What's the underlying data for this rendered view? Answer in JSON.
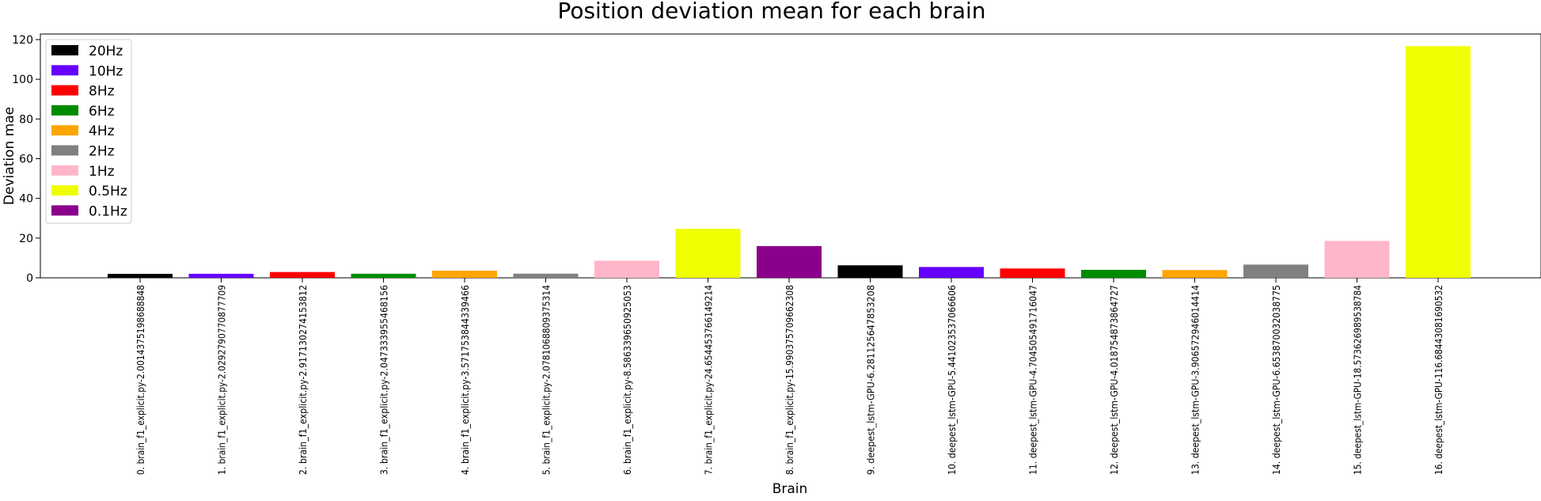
{
  "chart_data": {
    "type": "bar",
    "title": "Position deviation mean for each brain",
    "xlabel": "Brain",
    "ylabel": "Deviation mae",
    "ylim": [
      0,
      122
    ],
    "yticks": [
      0,
      20,
      40,
      60,
      80,
      100,
      120
    ],
    "grid": false,
    "legend_position": "top-left",
    "legend": [
      {
        "label": "20Hz",
        "color": "#000000"
      },
      {
        "label": "10Hz",
        "color": "#6600ff"
      },
      {
        "label": "8Hz",
        "color": "#ff0000"
      },
      {
        "label": "6Hz",
        "color": "#008c00"
      },
      {
        "label": "4Hz",
        "color": "#ffa500"
      },
      {
        "label": "2Hz",
        "color": "#808080"
      },
      {
        "label": "1Hz",
        "color": "#ffb6c8"
      },
      {
        "label": "0.5Hz",
        "color": "#f0ff00"
      },
      {
        "label": "0.1Hz",
        "color": "#8b008b"
      }
    ],
    "categories": [
      "0. brain_f1_explicit.py-2.0014375198688848",
      "1. brain_f1_explicit.py-2.0292790770877709",
      "2. brain_f1_explicit.py-2.917130274153812",
      "3. brain_f1_explicit.py-2.047333955468156",
      "4. brain_f1_explicit.py-3.571753844339466",
      "5. brain_f1_explicit.py-2.0781068809375314",
      "6. brain_f1_explicit.py-8.586339650925053",
      "7. brain_f1_explicit.py-24.654453766149214",
      "8. brain_f1_explicit.py-15.990375709662308",
      "9. deepest_lstm-GPU-6.281125647853208",
      "10. deepest_lstm-GPU-5.441023537066606",
      "11. deepest_lstm-GPU-4.704505491716047",
      "12. deepest_lstm-GPU-4.018754873864727",
      "13. deepest_lstm-GPU-3.906572946014414",
      "14. deepest_lstm-GPU-6.653870032038775",
      "15. deepest_lstm-GPU-18.573626989538784",
      "16. deepest_lstm-GPU-116.68443081690532"
    ],
    "values": [
      2.0,
      2.03,
      2.92,
      2.05,
      3.57,
      2.08,
      8.59,
      24.65,
      15.99,
      6.28,
      5.44,
      4.7,
      4.02,
      3.91,
      6.65,
      18.57,
      116.68
    ],
    "bar_colors": [
      "#000000",
      "#6600ff",
      "#ff0000",
      "#008c00",
      "#ffa500",
      "#808080",
      "#ffb6c8",
      "#f0ff00",
      "#8b008b",
      "#000000",
      "#6600ff",
      "#ff0000",
      "#008c00",
      "#ffa500",
      "#808080",
      "#ffb6c8",
      "#f0ff00"
    ]
  }
}
